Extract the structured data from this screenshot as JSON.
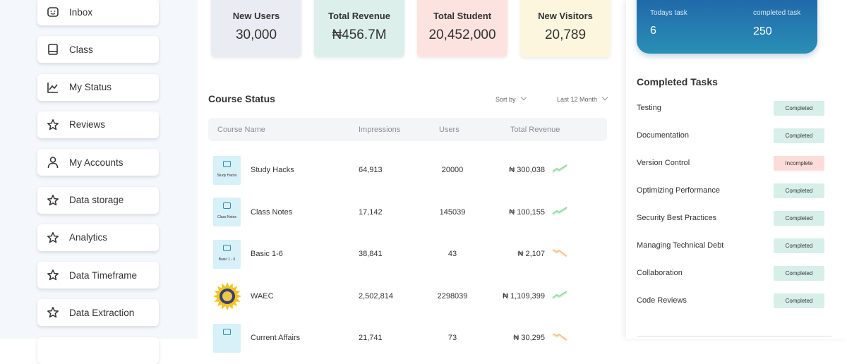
{
  "sidebar": {
    "items": [
      "Inbox",
      "Class",
      "My Status",
      "Reviews",
      "My Accounts",
      "Data storage",
      "Analytics",
      "Data Timeframe",
      "Data Extraction"
    ]
  },
  "stats": [
    {
      "label": "New Users",
      "value": "30,000",
      "color": "#e9ecf2"
    },
    {
      "label": "Total Revenue",
      "value": "₦456.7M",
      "color": "#dcefeb"
    },
    {
      "label": "Total Student",
      "value": "20,452,000",
      "color": "#fde3df"
    },
    {
      "label": "New Visitors",
      "value": "20,789",
      "color": "#fdf6df"
    }
  ],
  "course_status": {
    "title": "Course Status",
    "sort_by": "Sort by",
    "period": "Last 12 Month",
    "columns": [
      "Course Name",
      "Impressions",
      "Users",
      "Total Revenue"
    ],
    "rows": [
      {
        "icon_label": "Study Hacks",
        "name": "Study Hacks",
        "impressions": "64,913",
        "users": "20000",
        "revenue": "₦ 300,038",
        "trend": "up"
      },
      {
        "icon_label": "Class Notes",
        "name": "Class Notes",
        "impressions": "17,142",
        "users": "145039",
        "revenue": "₦ 100,155",
        "trend": "up"
      },
      {
        "icon_label": "Basic 1 - 6",
        "name": "Basic 1-6",
        "impressions": "38,841",
        "users": "43",
        "revenue": "₦ 2,107",
        "trend": "down"
      },
      {
        "logo": "seal",
        "name": "WAEC",
        "impressions": "2,502,814",
        "users": "2298039",
        "revenue": "₦ 1,109,399",
        "trend": "up"
      },
      {
        "name": "Current Affairs",
        "impressions": "21,741",
        "users": "73",
        "revenue": "₦ 30,295",
        "trend": "down"
      }
    ]
  },
  "summary": {
    "todays_label": "Todays task",
    "todays_value": "6",
    "completed_label": "completed task",
    "completed_value": "250"
  },
  "completed_tasks": {
    "title": "Completed Tasks",
    "tasks": [
      {
        "name": "Testing",
        "status": "Completed"
      },
      {
        "name": "Documentation",
        "status": "Completed"
      },
      {
        "name": "Version Control",
        "status": "Incomplete"
      },
      {
        "name": "Optimizing Performance",
        "status": "Completed"
      },
      {
        "name": "Security Best Practices",
        "status": "Completed"
      },
      {
        "name": "Managing Technical Debt",
        "status": "Completed"
      },
      {
        "name": "Collaboration",
        "status": "Completed"
      },
      {
        "name": "Code Reviews",
        "status": "Completed"
      }
    ]
  }
}
